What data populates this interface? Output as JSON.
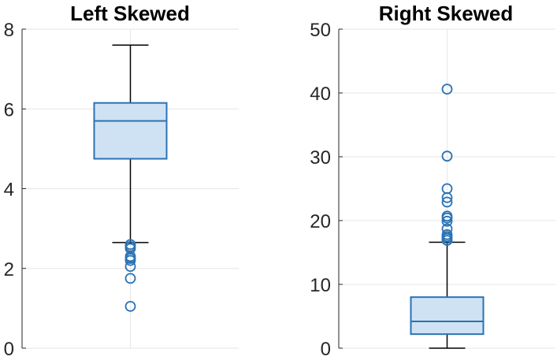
{
  "colors": {
    "box_fill": "#cfe2f3",
    "box_stroke": "#2a72b5",
    "whisker": "#000000",
    "outlier": "#2a72b5",
    "grid": "#e6e6e6",
    "axis": "#262626"
  },
  "chart_data": [
    {
      "type": "boxplot",
      "title": "Left Skewed",
      "ylim": [
        0,
        8
      ],
      "yticks": [
        0,
        2,
        4,
        6,
        8
      ],
      "grid": true,
      "box": {
        "whisker_low": 2.65,
        "q1": 4.75,
        "median": 5.7,
        "q3": 6.15,
        "whisker_high": 7.6
      },
      "outliers": [
        2.6,
        2.55,
        2.5,
        2.3,
        2.25,
        2.2,
        2.05,
        1.75,
        1.05
      ]
    },
    {
      "type": "boxplot",
      "title": "Right Skewed",
      "ylim": [
        0,
        50
      ],
      "yticks": [
        0,
        10,
        20,
        30,
        40,
        50
      ],
      "grid": true,
      "box": {
        "whisker_low": 0,
        "q1": 2.2,
        "median": 4.2,
        "q3": 8.0,
        "whisker_high": 16.6
      },
      "outliers": [
        40.6,
        30.1,
        25.0,
        23.6,
        22.9,
        20.7,
        20.4,
        19.9,
        18.7,
        17.8,
        17.5,
        17.2,
        16.9
      ]
    }
  ]
}
